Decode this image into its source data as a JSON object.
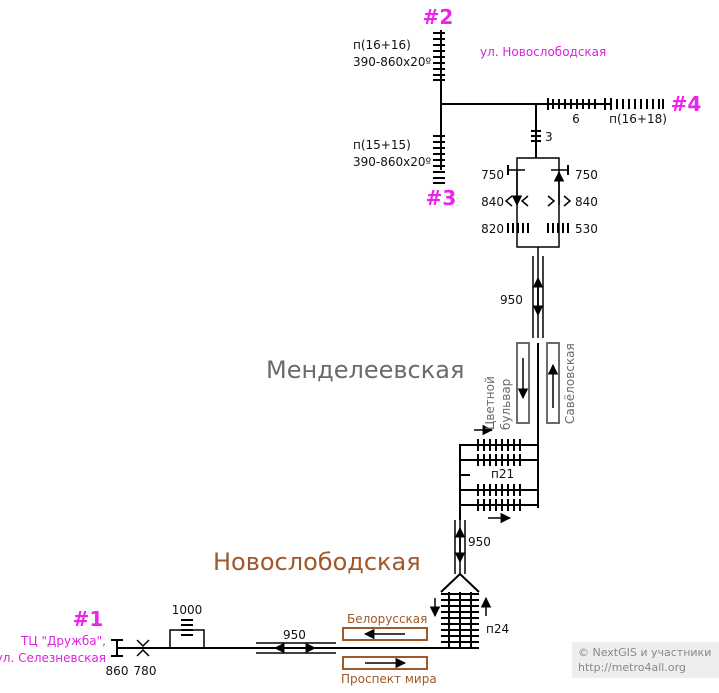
{
  "exits": {
    "e1": "#1",
    "e2": "#2",
    "e3": "#3",
    "e4": "#4"
  },
  "streets": {
    "novoslobodskaya_st": "ул. Новослободская",
    "tc_druzhba": "ТЦ \"Дружба\",",
    "seleznevskaya": "ул. Селезневская"
  },
  "labels": {
    "p16_16": "п(16+16)",
    "p15_15": "п(15+15)",
    "dims_top": "390-860x20º",
    "dims_bottom": "390-860x20º",
    "n6": "6",
    "p16_18": "п(16+18)",
    "n3": "3",
    "n750_left": "750",
    "n750_right": "750",
    "n840_left": "840",
    "n840_right": "840",
    "n820": "820",
    "n530": "530",
    "n950_top": "950",
    "p21": "п21",
    "n950_mid": "950",
    "n1000": "1000",
    "n950_bottom": "950",
    "n860": "860",
    "n780": "780",
    "p24": "п24"
  },
  "stations": {
    "mendeleevskaya": "Менделеевская",
    "novoslobodskaya": "Новослободская"
  },
  "platforms": {
    "tsvetnoy_line1": "Цветной",
    "tsvetnoy_line2": "бульвар",
    "savelovskaya": "Савёловская",
    "belorusskaya": "Белорусская",
    "prospekt_mira": "Проспект мира"
  },
  "credit": {
    "line1": "© NextGIS и участники",
    "line2": "http://metro4all.org"
  },
  "colors": {
    "exit": "#ee22ee",
    "street": "#dd22dd",
    "grey_station": "#6b6b6b",
    "brown_station": "#a0582a",
    "credit_bg": "#eeeeee"
  }
}
